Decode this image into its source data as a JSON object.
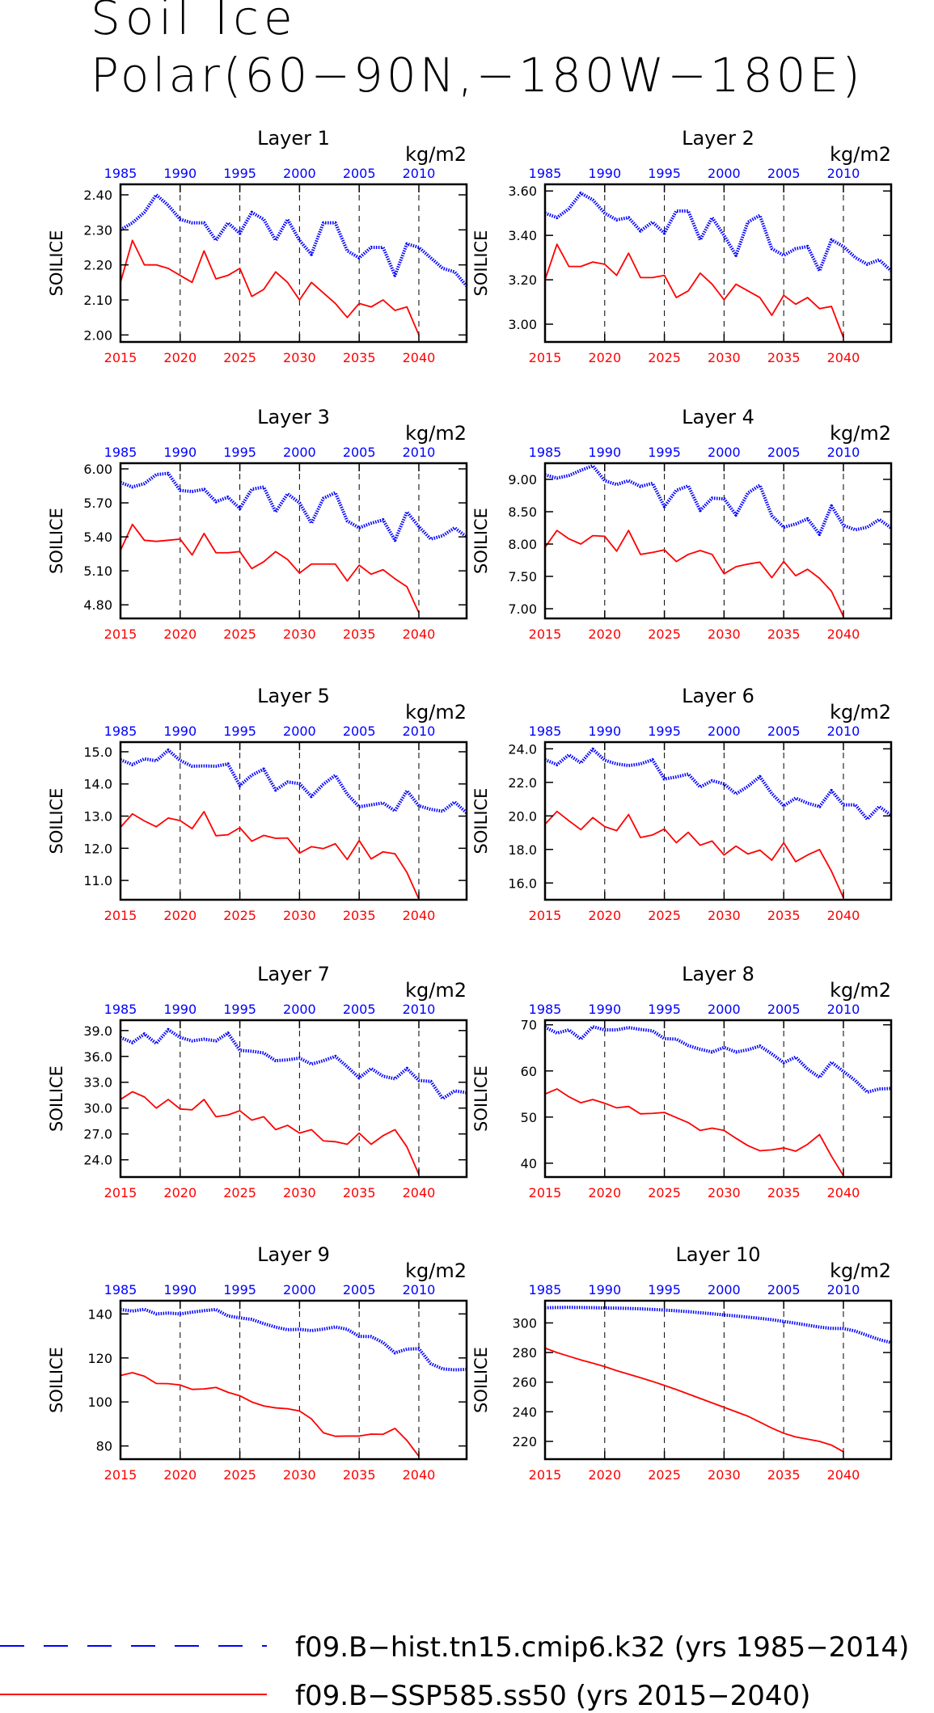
{
  "figure": {
    "title_line1": "Soil Ice",
    "title_line2": "Polar(60−90N,−180W−180E)",
    "units": "kg/m2",
    "ylabel": "SOILICE",
    "hist_color": "#0000ff",
    "ssp_color": "#ff0000",
    "legend": [
      {
        "label": "f09.B−hist.tn15.cmip6.k32 (yrs 1985−2014)",
        "color": "#0000ff",
        "style": "dashed"
      },
      {
        "label": "f09.B−SSP585.ss50 (yrs 2015−2040)",
        "color": "#ff0000",
        "style": "solid"
      }
    ]
  },
  "chart_data": [
    {
      "type": "line",
      "title": "Layer 1",
      "ylabel": "SOILICE",
      "units": "kg/m2",
      "x_bottom_ticks": [
        2015,
        2020,
        2025,
        2030,
        2035,
        2040
      ],
      "x_top_ticks": [
        1985,
        1990,
        1995,
        2000,
        2005,
        2010
      ],
      "ylim": [
        1.98,
        2.43
      ],
      "y_ticks": [
        "2.00",
        "2.10",
        "2.20",
        "2.30",
        "2.40"
      ],
      "series": [
        {
          "name": "f09.B−hist.tn15.cmip6.k32",
          "x_start": 1985,
          "values": [
            2.3,
            2.32,
            2.35,
            2.4,
            2.37,
            2.33,
            2.32,
            2.32,
            2.27,
            2.32,
            2.29,
            2.35,
            2.33,
            2.27,
            2.33,
            2.27,
            2.23,
            2.32,
            2.32,
            2.24,
            2.22,
            2.25,
            2.25,
            2.17,
            2.26,
            2.25,
            2.22,
            2.19,
            2.18,
            2.14
          ]
        },
        {
          "name": "f09.B−SSP585.ss50",
          "x_start": 2015,
          "values": [
            2.15,
            2.27,
            2.2,
            2.2,
            2.19,
            2.17,
            2.15,
            2.24,
            2.16,
            2.17,
            2.19,
            2.11,
            2.13,
            2.18,
            2.15,
            2.1,
            2.15,
            2.12,
            2.09,
            2.05,
            2.09,
            2.08,
            2.1,
            2.07,
            2.08,
            2.0
          ]
        }
      ]
    },
    {
      "type": "line",
      "title": "Layer 2",
      "ylabel": "SOILICE",
      "units": "kg/m2",
      "x_bottom_ticks": [
        2015,
        2020,
        2025,
        2030,
        2035,
        2040
      ],
      "x_top_ticks": [
        1985,
        1990,
        1995,
        2000,
        2005,
        2010
      ],
      "ylim": [
        2.92,
        3.63
      ],
      "y_ticks": [
        "3.00",
        "3.20",
        "3.40",
        "3.60"
      ],
      "series": [
        {
          "name": "f09.B−hist.tn15.cmip6.k32",
          "x_start": 1985,
          "values": [
            3.5,
            3.48,
            3.52,
            3.59,
            3.56,
            3.5,
            3.47,
            3.48,
            3.42,
            3.46,
            3.41,
            3.51,
            3.51,
            3.38,
            3.48,
            3.4,
            3.31,
            3.46,
            3.49,
            3.34,
            3.31,
            3.34,
            3.35,
            3.24,
            3.38,
            3.35,
            3.3,
            3.27,
            3.29,
            3.24
          ]
        },
        {
          "name": "f09.B−SSP585.ss50",
          "x_start": 2015,
          "values": [
            3.2,
            3.36,
            3.26,
            3.26,
            3.28,
            3.27,
            3.22,
            3.32,
            3.21,
            3.21,
            3.22,
            3.12,
            3.15,
            3.23,
            3.18,
            3.11,
            3.18,
            3.15,
            3.12,
            3.04,
            3.13,
            3.09,
            3.12,
            3.07,
            3.08,
            2.94
          ]
        }
      ]
    },
    {
      "type": "line",
      "title": "Layer 3",
      "ylabel": "SOILICE",
      "units": "kg/m2",
      "x_bottom_ticks": [
        2015,
        2020,
        2025,
        2030,
        2035,
        2040
      ],
      "x_top_ticks": [
        1985,
        1990,
        1995,
        2000,
        2005,
        2010
      ],
      "ylim": [
        4.68,
        6.05
      ],
      "y_ticks": [
        "4.80",
        "5.10",
        "5.40",
        "5.70",
        "6.00"
      ],
      "series": [
        {
          "name": "f09.B−hist.tn15.cmip6.k32",
          "x_start": 1985,
          "values": [
            5.88,
            5.84,
            5.87,
            5.95,
            5.96,
            5.81,
            5.8,
            5.82,
            5.71,
            5.75,
            5.65,
            5.82,
            5.84,
            5.62,
            5.78,
            5.7,
            5.52,
            5.74,
            5.79,
            5.54,
            5.48,
            5.52,
            5.55,
            5.37,
            5.62,
            5.49,
            5.38,
            5.41,
            5.48,
            5.4
          ]
        },
        {
          "name": "f09.B−SSP585.ss50",
          "x_start": 2015,
          "values": [
            5.28,
            5.51,
            5.37,
            5.36,
            5.37,
            5.38,
            5.24,
            5.43,
            5.26,
            5.26,
            5.27,
            5.12,
            5.18,
            5.27,
            5.2,
            5.08,
            5.16,
            5.16,
            5.16,
            5.01,
            5.15,
            5.07,
            5.11,
            5.03,
            4.96,
            4.73
          ]
        }
      ]
    },
    {
      "type": "line",
      "title": "Layer 4",
      "ylabel": "SOILICE",
      "units": "kg/m2",
      "x_bottom_ticks": [
        2015,
        2020,
        2025,
        2030,
        2035,
        2040
      ],
      "x_top_ticks": [
        1985,
        1990,
        1995,
        2000,
        2005,
        2010
      ],
      "ylim": [
        6.85,
        9.25
      ],
      "y_ticks": [
        "7.00",
        "7.50",
        "8.00",
        "8.50",
        "9.00"
      ],
      "series": [
        {
          "name": "f09.B−hist.tn15.cmip6.k32",
          "x_start": 1985,
          "values": [
            9.07,
            9.02,
            9.06,
            9.14,
            9.21,
            8.98,
            8.92,
            8.98,
            8.89,
            8.94,
            8.58,
            8.83,
            8.9,
            8.52,
            8.71,
            8.7,
            8.45,
            8.79,
            8.91,
            8.44,
            8.26,
            8.31,
            8.39,
            8.15,
            8.59,
            8.29,
            8.22,
            8.26,
            8.38,
            8.25
          ]
        },
        {
          "name": "f09.B−SSP585.ss50",
          "x_start": 2015,
          "values": [
            7.95,
            8.21,
            8.08,
            8.0,
            8.13,
            8.12,
            7.89,
            8.21,
            7.84,
            7.87,
            7.91,
            7.73,
            7.84,
            7.9,
            7.84,
            7.54,
            7.65,
            7.69,
            7.72,
            7.48,
            7.73,
            7.51,
            7.61,
            7.47,
            7.27,
            6.88
          ]
        }
      ]
    },
    {
      "type": "line",
      "title": "Layer 5",
      "ylabel": "SOILICE",
      "units": "kg/m2",
      "x_bottom_ticks": [
        2015,
        2020,
        2025,
        2030,
        2035,
        2040
      ],
      "x_top_ticks": [
        1985,
        1990,
        1995,
        2000,
        2005,
        2010
      ],
      "ylim": [
        10.4,
        15.3
      ],
      "y_ticks": [
        "11.0",
        "12.0",
        "13.0",
        "14.0",
        "15.0"
      ],
      "series": [
        {
          "name": "f09.B−hist.tn15.cmip6.k32",
          "x_start": 1985,
          "values": [
            14.75,
            14.6,
            14.78,
            14.72,
            15.05,
            14.73,
            14.55,
            14.56,
            14.55,
            14.62,
            13.95,
            14.27,
            14.46,
            13.81,
            14.06,
            14.01,
            13.61,
            13.99,
            14.27,
            13.68,
            13.29,
            13.35,
            13.41,
            13.16,
            13.79,
            13.32,
            13.21,
            13.15,
            13.44,
            13.1
          ]
        },
        {
          "name": "f09.B−SSP585.ss50",
          "x_start": 2015,
          "values": [
            12.65,
            13.07,
            12.85,
            12.67,
            12.94,
            12.86,
            12.61,
            13.14,
            12.39,
            12.42,
            12.64,
            12.22,
            12.4,
            12.31,
            12.32,
            11.85,
            12.05,
            11.99,
            12.14,
            11.65,
            12.24,
            11.67,
            11.89,
            11.83,
            11.25,
            10.42
          ]
        }
      ]
    },
    {
      "type": "line",
      "title": "Layer 6",
      "ylabel": "SOILICE",
      "units": "kg/m2",
      "x_bottom_ticks": [
        2015,
        2020,
        2025,
        2030,
        2035,
        2040
      ],
      "x_top_ticks": [
        1985,
        1990,
        1995,
        2000,
        2005,
        2010
      ],
      "ylim": [
        15.0,
        24.4
      ],
      "y_ticks": [
        "16.0",
        "18.0",
        "20.0",
        "22.0",
        "24.0"
      ],
      "series": [
        {
          "name": "f09.B−hist.tn15.cmip6.k32",
          "x_start": 1985,
          "values": [
            23.35,
            23.06,
            23.64,
            23.16,
            23.98,
            23.32,
            23.1,
            23.0,
            23.1,
            23.35,
            22.2,
            22.32,
            22.5,
            21.72,
            22.1,
            21.91,
            21.31,
            21.76,
            22.34,
            21.33,
            20.6,
            21.06,
            20.76,
            20.55,
            21.51,
            20.66,
            20.66,
            19.8,
            20.56,
            20.03
          ]
        },
        {
          "name": "f09.B−SSP585.ss50",
          "x_start": 2015,
          "values": [
            19.5,
            20.27,
            19.71,
            19.18,
            19.9,
            19.36,
            19.12,
            20.08,
            18.71,
            18.86,
            19.22,
            18.4,
            19.02,
            18.25,
            18.5,
            17.67,
            18.2,
            17.73,
            17.96,
            17.36,
            18.4,
            17.27,
            17.67,
            17.99,
            16.7,
            15.12
          ]
        }
      ]
    },
    {
      "type": "line",
      "title": "Layer 7",
      "ylabel": "SOILICE",
      "units": "kg/m2",
      "x_bottom_ticks": [
        2015,
        2020,
        2025,
        2030,
        2035,
        2040
      ],
      "x_top_ticks": [
        1985,
        1990,
        1995,
        2000,
        2005,
        2010
      ],
      "ylim": [
        22.0,
        40.2
      ],
      "y_ticks": [
        "24.0",
        "27.0",
        "30.0",
        "33.0",
        "36.0",
        "39.0"
      ],
      "series": [
        {
          "name": "f09.B−hist.tn15.cmip6.k32",
          "x_start": 1985,
          "values": [
            38.2,
            37.6,
            38.6,
            37.5,
            39.1,
            38.2,
            37.8,
            38.0,
            37.8,
            38.7,
            36.7,
            36.6,
            36.4,
            35.5,
            35.6,
            35.8,
            35.1,
            35.5,
            36.0,
            34.8,
            33.5,
            34.6,
            33.7,
            33.4,
            34.6,
            33.2,
            33.1,
            31.1,
            32.0,
            31.8
          ]
        },
        {
          "name": "f09.B−SSP585.ss50",
          "x_start": 2015,
          "values": [
            31.0,
            31.9,
            31.3,
            30.0,
            31.0,
            29.9,
            29.8,
            31.0,
            29.0,
            29.2,
            29.7,
            28.6,
            29.0,
            27.5,
            28.0,
            27.1,
            27.5,
            26.2,
            26.1,
            25.8,
            27.1,
            25.8,
            26.8,
            27.5,
            25.5,
            22.3
          ]
        }
      ]
    },
    {
      "type": "line",
      "title": "Layer 8",
      "ylabel": "SOILICE",
      "units": "kg/m2",
      "x_bottom_ticks": [
        2015,
        2020,
        2025,
        2030,
        2035,
        2040
      ],
      "x_top_ticks": [
        1985,
        1990,
        1995,
        2000,
        2005,
        2010
      ],
      "ylim": [
        37,
        71
      ],
      "y_ticks": [
        "40",
        "50",
        "60",
        "70"
      ],
      "series": [
        {
          "name": "f09.B−hist.tn15.cmip6.k32",
          "x_start": 1985,
          "values": [
            69.5,
            68.2,
            68.9,
            66.9,
            69.6,
            68.9,
            68.9,
            69.4,
            69.0,
            68.7,
            67.0,
            66.9,
            65.5,
            64.7,
            64.1,
            65.1,
            64.1,
            64.6,
            65.4,
            63.7,
            61.8,
            63.0,
            60.4,
            58.6,
            61.9,
            59.9,
            57.9,
            55.4,
            56.1,
            56.2
          ]
        },
        {
          "name": "f09.B−SSP585.ss50",
          "x_start": 2015,
          "values": [
            55.0,
            56.1,
            54.4,
            53.1,
            53.8,
            53.0,
            52.0,
            52.3,
            50.7,
            50.8,
            51.0,
            49.9,
            48.8,
            47.1,
            47.6,
            47.1,
            45.4,
            43.8,
            42.7,
            42.9,
            43.3,
            42.6,
            44.1,
            46.2,
            41.5,
            37.3
          ]
        }
      ]
    },
    {
      "type": "line",
      "title": "Layer 9",
      "ylabel": "SOILICE",
      "units": "kg/m2",
      "x_bottom_ticks": [
        2015,
        2020,
        2025,
        2030,
        2035,
        2040
      ],
      "x_top_ticks": [
        1985,
        1990,
        1995,
        2000,
        2005,
        2010
      ],
      "ylim": [
        74,
        146
      ],
      "y_ticks": [
        "80",
        "100",
        "120",
        "140"
      ],
      "series": [
        {
          "name": "f09.B−hist.tn15.cmip6.k32",
          "x_start": 1985,
          "values": [
            142.0,
            141.3,
            142.1,
            140.0,
            140.4,
            140.0,
            140.8,
            141.5,
            142.0,
            139.1,
            138.2,
            137.5,
            135.6,
            134.0,
            132.8,
            133.0,
            132.4,
            133.1,
            134.1,
            133.0,
            129.8,
            129.7,
            127.0,
            122.3,
            124.0,
            124.2,
            117.4,
            115.0,
            114.6,
            114.8
          ]
        },
        {
          "name": "f09.B−SSP585.ss50",
          "x_start": 2015,
          "values": [
            112.0,
            113.3,
            111.7,
            108.4,
            108.3,
            107.7,
            105.7,
            105.9,
            106.6,
            104.4,
            102.8,
            100.0,
            98.2,
            97.3,
            96.9,
            95.9,
            92.3,
            86.0,
            84.4,
            84.5,
            84.5,
            85.4,
            85.3,
            88.0,
            82.5,
            75.3
          ]
        }
      ]
    },
    {
      "type": "line",
      "title": "Layer 10",
      "ylabel": "SOILICE",
      "units": "kg/m2",
      "x_bottom_ticks": [
        2015,
        2020,
        2025,
        2030,
        2035,
        2040
      ],
      "x_top_ticks": [
        1985,
        1990,
        1995,
        2000,
        2005,
        2010
      ],
      "ylim": [
        208,
        315
      ],
      "y_ticks": [
        "220",
        "240",
        "260",
        "280",
        "300"
      ],
      "series": [
        {
          "name": "f09.B−hist.tn15.cmip6.k32",
          "x_start": 1985,
          "values": [
            310.2,
            310.4,
            310.5,
            310.4,
            310.3,
            310.1,
            310.0,
            309.8,
            309.5,
            309.1,
            308.7,
            308.2,
            307.6,
            306.9,
            306.2,
            305.4,
            304.7,
            303.9,
            303.1,
            302.2,
            301.0,
            299.8,
            298.5,
            297.2,
            296.3,
            296.2,
            294.5,
            291.6,
            288.8,
            286.7
          ]
        },
        {
          "name": "f09.B−SSP585.ss50",
          "x_start": 2015,
          "values": [
            283.0,
            280.0,
            277.5,
            275.0,
            272.8,
            270.5,
            267.8,
            265.4,
            263.0,
            260.5,
            257.8,
            255.0,
            252.0,
            249.0,
            246.0,
            243.0,
            240.0,
            237.0,
            233.0,
            229.0,
            225.5,
            223.0,
            221.5,
            220.0,
            217.5,
            213.0
          ]
        }
      ]
    }
  ]
}
